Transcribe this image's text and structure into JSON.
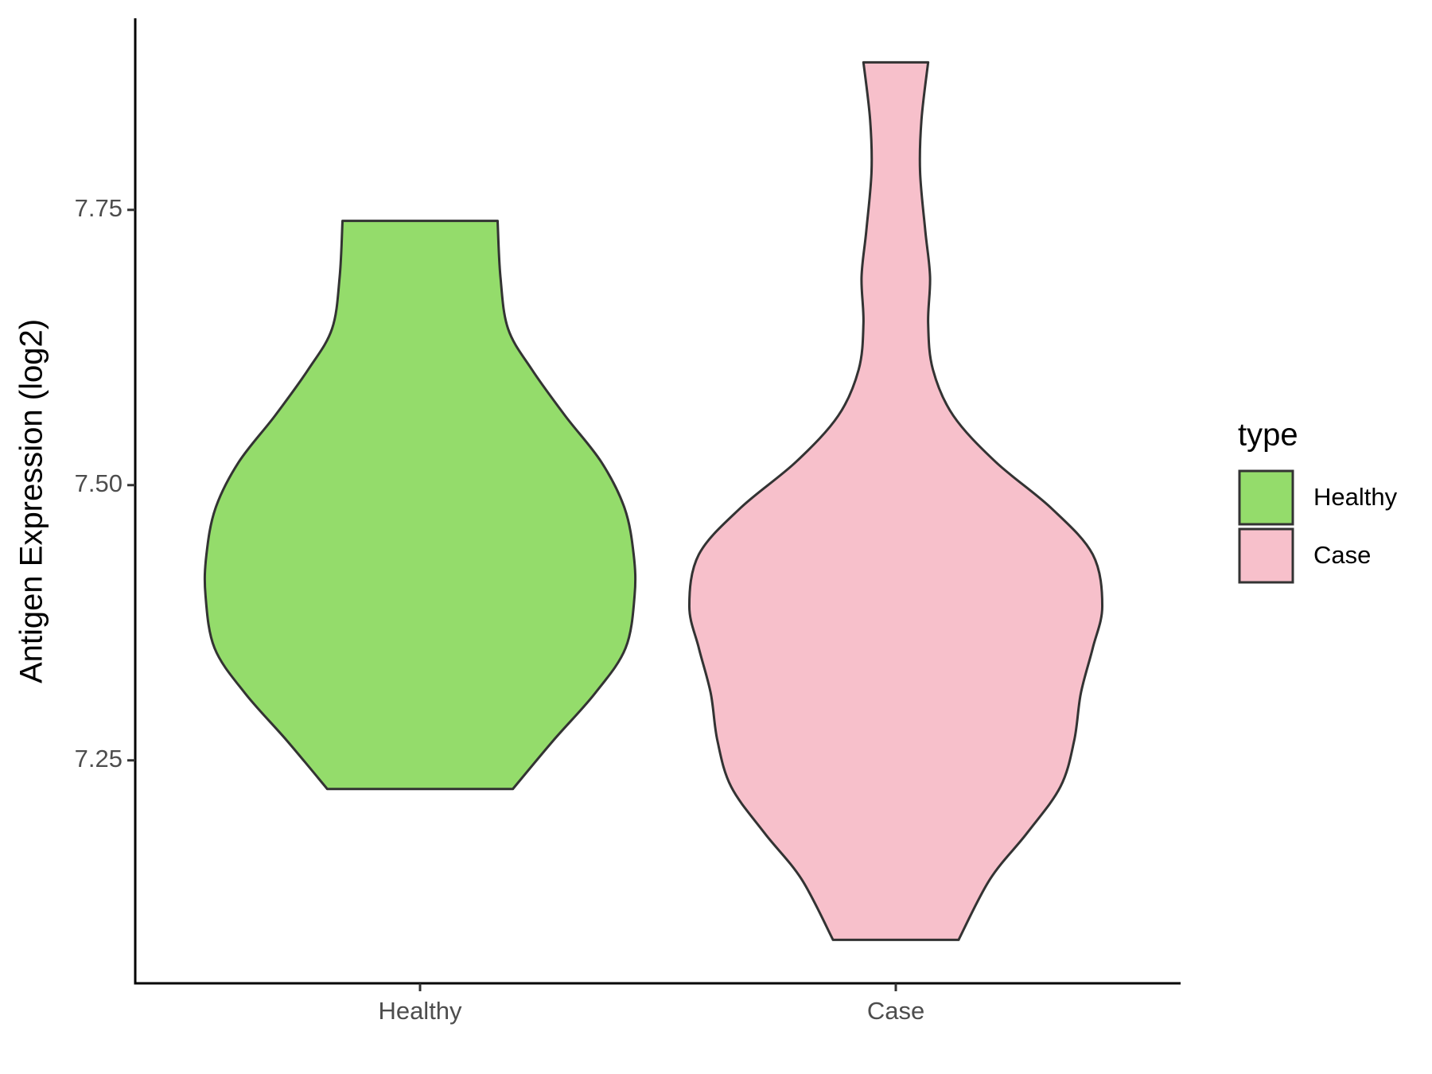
{
  "chart_data": {
    "type": "violin",
    "y_label": "Antigen Expression (log2)",
    "categories": [
      "Healthy",
      "Case"
    ],
    "ylim": [
      7.0475,
      7.924
    ],
    "yticks": [
      7.25,
      {
        "value": 7.5,
        "label": "7.50"
      },
      7.75
    ],
    "legend_title": "type",
    "legend_position": "right",
    "outline_color": "#333333",
    "series": [
      {
        "name": "Healthy",
        "color": "#94dc6b",
        "y": [
          7.74,
          7.689,
          7.642,
          7.605,
          7.563,
          7.521,
          7.479,
          7.437,
          7.4,
          7.352,
          7.311,
          7.268,
          7.224
        ],
        "width": [
          0.163,
          0.169,
          0.185,
          0.235,
          0.305,
          0.381,
          0.43,
          0.449,
          0.451,
          0.432,
          0.368,
          0.28,
          0.195
        ]
      },
      {
        "name": "Case",
        "color": "#f7c0cb",
        "y": [
          7.884,
          7.832,
          7.785,
          7.731,
          7.689,
          7.647,
          7.605,
          7.563,
          7.521,
          7.479,
          7.437,
          7.39,
          7.352,
          7.311,
          7.268,
          7.226,
          7.184,
          7.142,
          7.087
        ],
        "width": [
          0.068,
          0.054,
          0.051,
          0.062,
          0.072,
          0.068,
          0.078,
          0.121,
          0.21,
          0.327,
          0.414,
          0.434,
          0.414,
          0.389,
          0.375,
          0.346,
          0.276,
          0.198,
          0.132
        ]
      }
    ]
  }
}
